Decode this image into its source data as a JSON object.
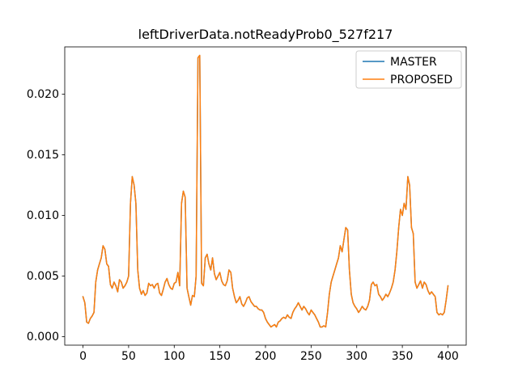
{
  "figure": {
    "background": "#ffffff",
    "frame_color": "#000000"
  },
  "chart_data": {
    "type": "line",
    "title": "leftDriverData.notReadyProb0_527f217",
    "xlabel": "",
    "ylabel": "",
    "grid": false,
    "legend_position": "upper right",
    "xlim": [
      -20,
      420
    ],
    "ylim": [
      -0.0007,
      0.0239
    ],
    "xticks": {
      "values": [
        0,
        50,
        100,
        150,
        200,
        250,
        300,
        350,
        400
      ],
      "labels": [
        "0",
        "50",
        "100",
        "150",
        "200",
        "250",
        "300",
        "350",
        "400"
      ]
    },
    "yticks": {
      "values": [
        0,
        0.005,
        0.01,
        0.015,
        0.02
      ],
      "labels": [
        "0.000",
        "0.005",
        "0.010",
        "0.015",
        "0.020"
      ]
    },
    "x": [
      0,
      2,
      4,
      6,
      8,
      10,
      12,
      14,
      16,
      18,
      20,
      22,
      24,
      26,
      28,
      30,
      32,
      34,
      36,
      38,
      40,
      42,
      44,
      46,
      48,
      50,
      52,
      54,
      56,
      58,
      60,
      62,
      64,
      66,
      68,
      70,
      72,
      74,
      76,
      78,
      80,
      82,
      84,
      86,
      88,
      90,
      92,
      94,
      96,
      98,
      100,
      102,
      104,
      106,
      108,
      110,
      112,
      114,
      116,
      118,
      120,
      122,
      124,
      126,
      128,
      130,
      132,
      134,
      136,
      138,
      140,
      142,
      144,
      146,
      148,
      150,
      152,
      154,
      156,
      158,
      160,
      162,
      164,
      166,
      168,
      170,
      172,
      174,
      176,
      178,
      180,
      182,
      184,
      186,
      188,
      190,
      192,
      194,
      196,
      198,
      200,
      202,
      204,
      206,
      208,
      210,
      212,
      214,
      216,
      218,
      220,
      222,
      224,
      226,
      228,
      230,
      232,
      234,
      236,
      238,
      240,
      242,
      244,
      246,
      248,
      250,
      252,
      254,
      256,
      258,
      260,
      262,
      264,
      266,
      268,
      270,
      272,
      274,
      276,
      278,
      280,
      282,
      284,
      286,
      288,
      290,
      292,
      294,
      296,
      298,
      300,
      302,
      304,
      306,
      308,
      310,
      312,
      314,
      316,
      318,
      320,
      322,
      324,
      326,
      328,
      330,
      332,
      334,
      336,
      338,
      340,
      342,
      344,
      346,
      348,
      350,
      352,
      354,
      356,
      358,
      360,
      362,
      364,
      366,
      368,
      370,
      372,
      374,
      376,
      378,
      380,
      382,
      384,
      386,
      388,
      390,
      392,
      394,
      396,
      398,
      400
    ],
    "series": [
      {
        "name": "MASTER",
        "color": "#1f77b4",
        "values": [
          0.0033,
          0.0028,
          0.0012,
          0.0011,
          0.0015,
          0.0017,
          0.002,
          0.0045,
          0.0055,
          0.006,
          0.0065,
          0.0075,
          0.0072,
          0.006,
          0.0058,
          0.0043,
          0.004,
          0.0045,
          0.0042,
          0.0037,
          0.0047,
          0.0045,
          0.004,
          0.0042,
          0.0045,
          0.005,
          0.011,
          0.0132,
          0.0125,
          0.011,
          0.0055,
          0.004,
          0.0035,
          0.0038,
          0.0034,
          0.0036,
          0.0044,
          0.0042,
          0.0043,
          0.004,
          0.0043,
          0.0044,
          0.0036,
          0.0034,
          0.0039,
          0.0045,
          0.0048,
          0.0043,
          0.004,
          0.0039,
          0.0044,
          0.0045,
          0.0053,
          0.0042,
          0.011,
          0.012,
          0.0115,
          0.004,
          0.0033,
          0.0026,
          0.0034,
          0.0033,
          0.005,
          0.023,
          0.0232,
          0.0044,
          0.0042,
          0.0065,
          0.0068,
          0.006,
          0.0055,
          0.0065,
          0.0052,
          0.0047,
          0.005,
          0.0053,
          0.0046,
          0.0043,
          0.0042,
          0.0046,
          0.0055,
          0.0053,
          0.004,
          0.0033,
          0.0028,
          0.003,
          0.0033,
          0.0027,
          0.0025,
          0.0028,
          0.0032,
          0.0033,
          0.0029,
          0.0027,
          0.0025,
          0.0025,
          0.0023,
          0.0022,
          0.0022,
          0.002,
          0.0015,
          0.0012,
          0.001,
          0.0008,
          0.0009,
          0.001,
          0.0008,
          0.0012,
          0.0013,
          0.0015,
          0.0016,
          0.0015,
          0.0018,
          0.0016,
          0.0015,
          0.002,
          0.0023,
          0.0025,
          0.0028,
          0.0025,
          0.0022,
          0.0025,
          0.0023,
          0.002,
          0.0018,
          0.0022,
          0.002,
          0.0018,
          0.0015,
          0.0012,
          0.0008,
          0.0008,
          0.0009,
          0.0008,
          0.002,
          0.0035,
          0.0045,
          0.005,
          0.0055,
          0.006,
          0.0065,
          0.0075,
          0.007,
          0.008,
          0.009,
          0.0088,
          0.0055,
          0.0035,
          0.0028,
          0.0025,
          0.0023,
          0.002,
          0.0022,
          0.0025,
          0.0023,
          0.0022,
          0.0025,
          0.003,
          0.0043,
          0.0045,
          0.0042,
          0.0043,
          0.0035,
          0.0033,
          0.003,
          0.0032,
          0.0035,
          0.0033,
          0.0036,
          0.004,
          0.0045,
          0.0055,
          0.007,
          0.009,
          0.0105,
          0.01,
          0.011,
          0.0105,
          0.0132,
          0.0125,
          0.009,
          0.0085,
          0.0045,
          0.004,
          0.0043,
          0.0046,
          0.004,
          0.0045,
          0.0043,
          0.0038,
          0.0035,
          0.0037,
          0.0035,
          0.0033,
          0.002,
          0.0018,
          0.0019,
          0.0018,
          0.002,
          0.003,
          0.0042
        ]
      },
      {
        "name": "PROPOSED",
        "color": "#ff7f0e",
        "values": [
          0.0033,
          0.0028,
          0.0012,
          0.0011,
          0.0015,
          0.0017,
          0.002,
          0.0045,
          0.0055,
          0.006,
          0.0065,
          0.0075,
          0.0072,
          0.006,
          0.0058,
          0.0043,
          0.004,
          0.0045,
          0.0042,
          0.0037,
          0.0047,
          0.0045,
          0.004,
          0.0042,
          0.0045,
          0.005,
          0.011,
          0.0132,
          0.0125,
          0.011,
          0.0055,
          0.004,
          0.0035,
          0.0038,
          0.0034,
          0.0036,
          0.0044,
          0.0042,
          0.0043,
          0.004,
          0.0043,
          0.0044,
          0.0036,
          0.0034,
          0.0039,
          0.0045,
          0.0048,
          0.0043,
          0.004,
          0.0039,
          0.0044,
          0.0045,
          0.0053,
          0.0042,
          0.011,
          0.012,
          0.0115,
          0.004,
          0.0033,
          0.0026,
          0.0034,
          0.0033,
          0.005,
          0.023,
          0.0232,
          0.0044,
          0.0042,
          0.0065,
          0.0068,
          0.006,
          0.0055,
          0.0065,
          0.0052,
          0.0047,
          0.005,
          0.0053,
          0.0046,
          0.0043,
          0.0042,
          0.0046,
          0.0055,
          0.0053,
          0.004,
          0.0033,
          0.0028,
          0.003,
          0.0033,
          0.0027,
          0.0025,
          0.0028,
          0.0032,
          0.0033,
          0.0029,
          0.0027,
          0.0025,
          0.0025,
          0.0023,
          0.0022,
          0.0022,
          0.002,
          0.0015,
          0.0012,
          0.001,
          0.0008,
          0.0009,
          0.001,
          0.0008,
          0.0012,
          0.0013,
          0.0015,
          0.0016,
          0.0015,
          0.0018,
          0.0016,
          0.0015,
          0.002,
          0.0023,
          0.0025,
          0.0028,
          0.0025,
          0.0022,
          0.0025,
          0.0023,
          0.002,
          0.0018,
          0.0022,
          0.002,
          0.0018,
          0.0015,
          0.0012,
          0.0008,
          0.0008,
          0.0009,
          0.0008,
          0.002,
          0.0035,
          0.0045,
          0.005,
          0.0055,
          0.006,
          0.0065,
          0.0075,
          0.007,
          0.008,
          0.009,
          0.0088,
          0.0055,
          0.0035,
          0.0028,
          0.0025,
          0.0023,
          0.002,
          0.0022,
          0.0025,
          0.0023,
          0.0022,
          0.0025,
          0.003,
          0.0043,
          0.0045,
          0.0042,
          0.0043,
          0.0035,
          0.0033,
          0.003,
          0.0032,
          0.0035,
          0.0033,
          0.0036,
          0.004,
          0.0045,
          0.0055,
          0.007,
          0.009,
          0.0105,
          0.01,
          0.011,
          0.0105,
          0.0132,
          0.0125,
          0.009,
          0.0085,
          0.0045,
          0.004,
          0.0043,
          0.0046,
          0.004,
          0.0045,
          0.0043,
          0.0038,
          0.0035,
          0.0037,
          0.0035,
          0.0033,
          0.002,
          0.0018,
          0.0019,
          0.0018,
          0.002,
          0.003,
          0.0042
        ]
      }
    ]
  }
}
